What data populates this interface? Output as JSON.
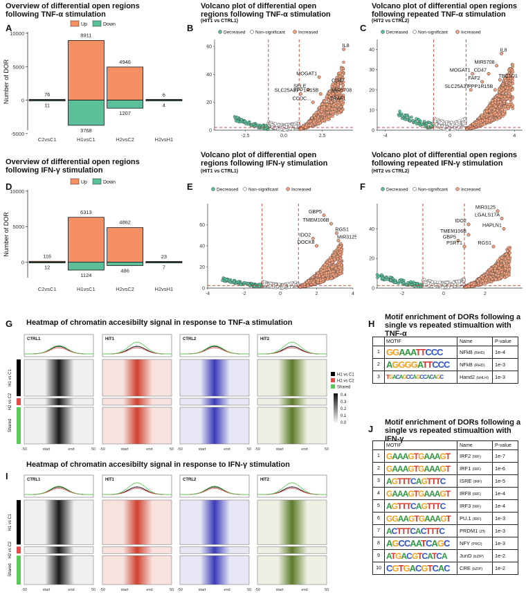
{
  "panels": {
    "A": {
      "label": "A",
      "title": "Overview of differential open regions following TNF-α stimulation",
      "ylabel": "Number of DOR",
      "legend": {
        "up": "Up",
        "down": "Down"
      },
      "chart_data": {
        "type": "bar",
        "categories": [
          "C2vsC1",
          "H1vsC1",
          "H2vsC2",
          "H2vsH1"
        ],
        "series": [
          {
            "name": "Up",
            "values": [
              76,
              8911,
              4946,
              6
            ]
          },
          {
            "name": "Down",
            "values": [
              -11,
              -3768,
              -1207,
              -4
            ]
          }
        ],
        "labels_up": [
          "76",
          "8911",
          "4946",
          "6"
        ],
        "labels_down": [
          "11",
          "3768",
          "1207",
          "4"
        ],
        "ylim": [
          -4500,
          10000
        ],
        "yticks": [
          "10000",
          "5000",
          "0",
          "-5000"
        ]
      }
    },
    "D": {
      "label": "D",
      "title": "Overview of differential open regions following IFN-γ stimulation",
      "ylabel": "Number of DOR",
      "legend": {
        "up": "Up",
        "down": "Down"
      },
      "chart_data": {
        "type": "bar",
        "categories": [
          "C2vsC1",
          "H1vsC1",
          "H2vsC2",
          "H2vsH1"
        ],
        "series": [
          {
            "name": "Up",
            "values": [
              116,
              6313,
              4862,
              23
            ]
          },
          {
            "name": "Down",
            "values": [
              -12,
              -1124,
              -486,
              -7
            ]
          }
        ],
        "labels_up": [
          "116",
          "6313",
          "4862",
          "23"
        ],
        "labels_down": [
          "12",
          "1124",
          "486",
          "7"
        ],
        "ylim": [
          -2200,
          10000
        ],
        "yticks": [
          "10000",
          "5000",
          "0"
        ]
      }
    },
    "B": {
      "label": "B",
      "title": "Volcano plot of differential open regions following TNF-α stimulation",
      "subtitle": "(HIT1 vs CTRL1)",
      "legend": [
        "Decreased",
        "Non-significant",
        "Increased"
      ],
      "chart_data": {
        "type": "scatter",
        "xlim": [
          -4.5,
          4.5
        ],
        "ylim": [
          0,
          65
        ],
        "xticks": [
          -2.5,
          0,
          2.5
        ],
        "xtick_labels": [
          "-2.5",
          "0.0",
          "2.5"
        ],
        "yticks": [
          0,
          20,
          40,
          60
        ],
        "genes": [
          {
            "name": "IL8",
            "x": 3.9,
            "y": 58
          },
          {
            "name": "MOGAT1",
            "x": 2.3,
            "y": 38
          },
          {
            "name": "CD47",
            "x": 3.2,
            "y": 33
          },
          {
            "name": "SELE",
            "x": 1.6,
            "y": 29
          },
          {
            "name": "SLC25A37",
            "x": 1.1,
            "y": 26
          },
          {
            "name": "PPP1R15B",
            "x": 2.4,
            "y": 26
          },
          {
            "name": "MIR5708",
            "x": 3.2,
            "y": 26
          },
          {
            "name": "CCDC...",
            "x": 1.9,
            "y": 20
          },
          {
            "name": "TRAF1",
            "x": 3.1,
            "y": 20
          }
        ]
      }
    },
    "C": {
      "label": "C",
      "title": "Volcano plot of differential open regions following repeated TNF-α stimulation",
      "subtitle": "(HIT2 vs CTRL2)",
      "legend": [
        "Decreased",
        "Non-significant",
        "Increased"
      ],
      "chart_data": {
        "type": "scatter",
        "xlim": [
          -4.5,
          4.5
        ],
        "ylim": [
          0,
          45
        ],
        "xticks": [
          -4,
          0,
          4
        ],
        "xtick_labels": [
          "-4",
          "0",
          "4"
        ],
        "yticks": [
          0,
          10,
          20,
          30,
          40
        ],
        "genes": [
          {
            "name": "IL8",
            "x": 3.2,
            "y": 38
          },
          {
            "name": "MIR5708",
            "x": 2.9,
            "y": 32
          },
          {
            "name": "MOGAT1",
            "x": 1.4,
            "y": 28
          },
          {
            "name": "CD47",
            "x": 2.4,
            "y": 28
          },
          {
            "name": "TBC1D1",
            "x": 3.1,
            "y": 25
          },
          {
            "name": "FAF2",
            "x": 2.0,
            "y": 24
          },
          {
            "name": "SLC25A37",
            "x": 1.3,
            "y": 20
          },
          {
            "name": "PPP1R15B",
            "x": 2.8,
            "y": 20
          }
        ]
      }
    },
    "E": {
      "label": "E",
      "title": "Volcano plot of differential open regions following IFN-γ stimulation",
      "subtitle": "(HIT1 vs CTRL1)",
      "legend": [
        "Decreased",
        "Non-significant",
        "Increased"
      ],
      "chart_data": {
        "type": "scatter",
        "xlim": [
          -4,
          4
        ],
        "ylim": [
          0,
          80
        ],
        "xticks": [
          -4,
          -2,
          0,
          2,
          4
        ],
        "xtick_labels": [
          "-4",
          "-2",
          "0",
          "2",
          "4"
        ],
        "yticks": [
          0,
          20,
          40,
          60
        ],
        "genes": [
          {
            "name": "GBP5",
            "x": 2.4,
            "y": 69
          },
          {
            "name": "TMEM106B",
            "x": 2.8,
            "y": 61
          },
          {
            "name": "RGS1",
            "x": 3.1,
            "y": 52
          },
          {
            "name": "IDO2",
            "x": 1.8,
            "y": 47
          },
          {
            "name": "MIR3125",
            "x": 3.2,
            "y": 45
          },
          {
            "name": "DOCK8",
            "x": 2.0,
            "y": 40
          }
        ]
      }
    },
    "F": {
      "label": "F",
      "title": "Volcano plot of differential open regions following repeated IFN-γ stimulation",
      "subtitle": "(HIT2 vs CTRL2)",
      "legend": [
        "Decreased",
        "Non-significant",
        "Increased"
      ],
      "chart_data": {
        "type": "scatter",
        "xlim": [
          -3.2,
          3.8
        ],
        "ylim": [
          0,
          57
        ],
        "xticks": [
          -2,
          0,
          2
        ],
        "xtick_labels": [
          "-2",
          "0",
          "2"
        ],
        "yticks": [
          0,
          20,
          40
        ],
        "genes": [
          {
            "name": "MIR3125",
            "x": 2.6,
            "y": 52
          },
          {
            "name": "LGALS17A",
            "x": 2.8,
            "y": 47
          },
          {
            "name": "IDO2",
            "x": 1.2,
            "y": 43
          },
          {
            "name": "HAPLN1",
            "x": 2.9,
            "y": 40
          },
          {
            "name": "TMEM106B",
            "x": 1.2,
            "y": 36
          },
          {
            "name": "GBP5",
            "x": 0.7,
            "y": 32
          },
          {
            "name": "PSRT1",
            "x": 1.0,
            "y": 28
          },
          {
            "name": "RGS1",
            "x": 2.4,
            "y": 28
          }
        ]
      }
    },
    "G": {
      "label": "G",
      "title": "Heatmap of chromatin accesibilty signal in response to TNF-a stimulation",
      "columns": [
        "CTRL1",
        "HIT1",
        "CTRL2",
        "HIT2"
      ],
      "rows": [
        "H1 vs C1",
        "H2 vs C2",
        "Shared"
      ],
      "xticks": [
        "-50",
        "start",
        "end",
        "50"
      ],
      "legend": [
        "H1 vs C1",
        "H2 vs C2",
        "Shared"
      ],
      "scale": [
        "0.4",
        "0.3",
        "0.2",
        "0.1",
        "0.0"
      ]
    },
    "I": {
      "label": "I",
      "title": "Heatmap of chromatin accesibilty signal in response to IFN-γ stimulation",
      "columns": [
        "CTRL1",
        "HIT1",
        "CTRL2",
        "HIT2"
      ],
      "rows": [
        "H1 vs C1",
        "H2 vs C2",
        "Shared"
      ],
      "xticks": [
        "-50",
        "start",
        "end",
        "50"
      ]
    },
    "H": {
      "label": "H",
      "title": "Motif enrichment of DORs following a single vs repeated stimualtion with TNF-α",
      "headers": [
        "MOTIF",
        "Name",
        "P-value"
      ],
      "rows": [
        {
          "n": "1",
          "logo": "GGAAATTCCC",
          "name": "NFkB",
          "family": "(RHD)",
          "p": "1e-4"
        },
        {
          "n": "2",
          "logo": "AGGGGATTCCC",
          "name": "NFkB",
          "family": "(RHD)",
          "p": "1e-3"
        },
        {
          "n": "3",
          "logo": "TGACAGCCAGCCACAGC",
          "name": "Hand2",
          "family": "(bHLH)",
          "p": "1e-3"
        }
      ]
    },
    "J": {
      "label": "J",
      "title": "Motif enrichment of DORs following a single vs repeated stimualtion with IFN-γ",
      "headers": [
        "MOTIF",
        "Name",
        "P-value"
      ],
      "rows": [
        {
          "n": "1",
          "logo": "GAAAGTGAAAGT",
          "name": "IRF2",
          "family": "(IRF)",
          "p": "1e-7"
        },
        {
          "n": "2",
          "logo": "GAAAGTGAAAGT",
          "name": "IRF1",
          "family": "(IRF)",
          "p": "1e-6"
        },
        {
          "n": "3",
          "logo": "AGTTTCAGTTTC",
          "name": "ISRE",
          "family": "(IRF)",
          "p": "1e-5"
        },
        {
          "n": "4",
          "logo": "GAAAGTGAAAGT",
          "name": "IRF8",
          "family": "(IRF)",
          "p": "1e-4"
        },
        {
          "n": "5",
          "logo": "AGTTTCAGTTTC",
          "name": "IRF3",
          "family": "(IRF)",
          "p": "1e-4"
        },
        {
          "n": "6",
          "logo": "GGAAGTGAAAGT",
          "name": "PU.1",
          "family": "(IRF)",
          "p": "1e-3"
        },
        {
          "n": "7",
          "logo": "ACTTTCACTTTC",
          "name": "PRDM1",
          "family": "(Zf)",
          "p": "1e-3"
        },
        {
          "n": "8",
          "logo": "AGCCAATCAGC",
          "name": "NFY",
          "family": "(PRO)",
          "p": "1e-3"
        },
        {
          "n": "9",
          "logo": "ATGACGTCATCA",
          "name": "JunD",
          "family": "(bZIP)",
          "p": "1e-2"
        },
        {
          "n": "10",
          "logo": "CGTGACGTCAC",
          "name": "CRE",
          "family": "(bZIP)",
          "p": "1e-2"
        }
      ]
    }
  },
  "colors": {
    "up": "#f58f64",
    "down": "#5bbf9a",
    "decreased": "#5bbf9a",
    "nonsig": "#ffffff",
    "increased": "#f4a37f",
    "threshold": "#c0392b",
    "ctrl1": "#222222",
    "hit1": "#c0392b",
    "ctrl2": "#2a2aa8",
    "hit2": "#6b7d2e",
    "h1": "#000000",
    "h2": "#e34b4b",
    "shared": "#5bc85b"
  }
}
